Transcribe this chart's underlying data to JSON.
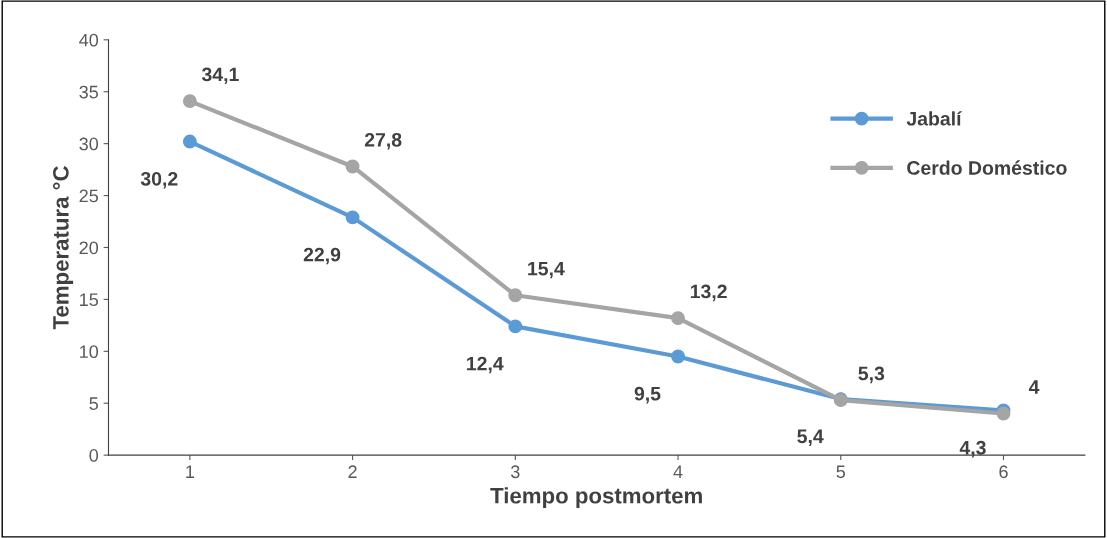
{
  "chart_data": {
    "type": "line",
    "xlabel": "Tiempo postmortem",
    "ylabel": "Temperatura °C",
    "categories": [
      "1",
      "2",
      "3",
      "4",
      "5",
      "6"
    ],
    "series": [
      {
        "name": "Jabalí",
        "color": "#5b9bd5",
        "values": [
          30.2,
          22.9,
          12.4,
          9.5,
          5.4,
          4.3
        ],
        "value_labels": [
          "30,2",
          "22,9",
          "12,4",
          "9,5",
          "5,4",
          "4,3"
        ]
      },
      {
        "name": "Cerdo Doméstico",
        "color": "#a5a5a5",
        "values": [
          34.1,
          27.8,
          15.4,
          13.2,
          5.3,
          4.0
        ],
        "value_labels": [
          "34,1",
          "27,8",
          "15,4",
          "13,2",
          "5,3",
          "4"
        ]
      }
    ],
    "ylim": [
      0,
      40
    ],
    "yticks": [
      0,
      5,
      10,
      15,
      20,
      25,
      30,
      35,
      40
    ],
    "grid": false,
    "legend": "top right",
    "marker": "circle",
    "line_style": "solid"
  }
}
